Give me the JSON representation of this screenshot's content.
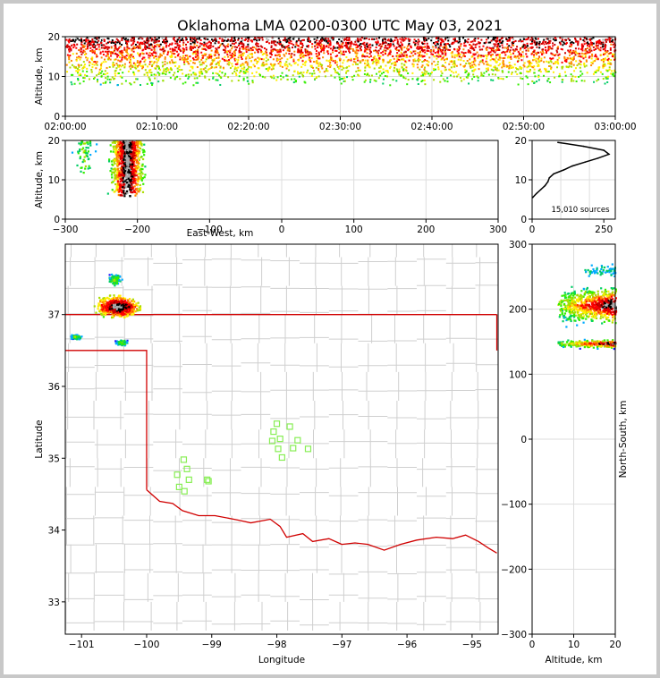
{
  "chart_data": {
    "type": "scatter",
    "title": "Oklahoma LMA 0200-0300 UTC May 03, 2021",
    "source_count_label": "15,010 sources",
    "colors": {
      "frame": "#000000",
      "grid": "#dddddd",
      "county": "#cfcfcf",
      "state_border": "#d00000",
      "station": "#88ee55",
      "histogram": "#000000",
      "background": "#ffffff"
    },
    "panels": [
      {
        "id": "time-height",
        "type": "scatter",
        "xlabel": "",
        "ylabel": "Altitude, km",
        "xlim_minutes": [
          0,
          60
        ],
        "ylim": [
          0,
          20
        ],
        "xticks": [
          "02:00:00",
          "02:10:00",
          "02:20:00",
          "02:30:00",
          "02:40:00",
          "02:50:00",
          "03:00:00"
        ],
        "yticks": [
          0,
          10,
          20
        ],
        "altitude_band_km": [
          8,
          20
        ]
      },
      {
        "id": "east-west-altitude",
        "type": "scatter",
        "xlabel": "East-West, km",
        "ylabel": "Altitude, km",
        "xlim": [
          -300,
          300
        ],
        "ylim": [
          0,
          20
        ],
        "xticks": [
          -300,
          -200,
          -100,
          0,
          100,
          200,
          300
        ],
        "yticks": [
          0,
          10,
          20
        ],
        "clusters": [
          {
            "x_center": -215,
            "x_halfwidth": 30,
            "alt_min": 6,
            "alt_max": 20
          },
          {
            "x_center": -275,
            "x_halfwidth": 20,
            "alt_min": 12,
            "alt_max": 20
          }
        ]
      },
      {
        "id": "altitude-histogram",
        "type": "line",
        "xlabel": "",
        "ylabel": "",
        "xlim": [
          0,
          290
        ],
        "ylim": [
          0,
          20
        ],
        "xticks": [
          0,
          250
        ],
        "yticks": [
          0,
          10,
          20
        ],
        "counts": [
          {
            "alt": 5.5,
            "n": 2
          },
          {
            "alt": 6.5,
            "n": 15
          },
          {
            "alt": 7.5,
            "n": 30
          },
          {
            "alt": 8.5,
            "n": 45
          },
          {
            "alt": 9.5,
            "n": 55
          },
          {
            "alt": 10.5,
            "n": 60
          },
          {
            "alt": 11.5,
            "n": 75
          },
          {
            "alt": 12.5,
            "n": 110
          },
          {
            "alt": 13.5,
            "n": 140
          },
          {
            "alt": 14.5,
            "n": 185
          },
          {
            "alt": 15.5,
            "n": 230
          },
          {
            "alt": 16.5,
            "n": 268
          },
          {
            "alt": 17.5,
            "n": 250
          },
          {
            "alt": 18.5,
            "n": 180
          },
          {
            "alt": 19.5,
            "n": 90
          }
        ]
      },
      {
        "id": "plan-view",
        "type": "scatter",
        "xlabel": "Longitude",
        "ylabel": "Latitude",
        "xlim": [
          -101.25,
          -94.6
        ],
        "ylim": [
          32.55,
          37.98
        ],
        "xticks": [
          -101,
          -100,
          -99,
          -98,
          -97,
          -96,
          -95
        ],
        "yticks": [
          33,
          34,
          35,
          36,
          37
        ],
        "clusters": [
          {
            "lon": -100.45,
            "lat": 37.12,
            "spread_lon": 0.4,
            "spread_lat": 0.18
          },
          {
            "lon": -100.5,
            "lat": 37.5,
            "spread_lon": 0.12,
            "spread_lat": 0.1
          },
          {
            "lon": -100.4,
            "lat": 36.62,
            "spread_lon": 0.12,
            "spread_lat": 0.05
          },
          {
            "lon": -101.1,
            "lat": 36.7,
            "spread_lon": 0.1,
            "spread_lat": 0.04
          }
        ],
        "stations": [
          {
            "lon": -99.43,
            "lat": 34.98
          },
          {
            "lon": -99.38,
            "lat": 34.85
          },
          {
            "lon": -99.53,
            "lat": 34.77
          },
          {
            "lon": -99.35,
            "lat": 34.7
          },
          {
            "lon": -99.07,
            "lat": 34.7
          },
          {
            "lon": -99.05,
            "lat": 34.68
          },
          {
            "lon": -99.5,
            "lat": 34.6
          },
          {
            "lon": -99.42,
            "lat": 34.54
          },
          {
            "lon": -98.0,
            "lat": 35.48
          },
          {
            "lon": -98.05,
            "lat": 35.37
          },
          {
            "lon": -98.07,
            "lat": 35.24
          },
          {
            "lon": -97.95,
            "lat": 35.27
          },
          {
            "lon": -97.8,
            "lat": 35.44
          },
          {
            "lon": -97.68,
            "lat": 35.25
          },
          {
            "lon": -97.98,
            "lat": 35.13
          },
          {
            "lon": -97.75,
            "lat": 35.14
          },
          {
            "lon": -97.92,
            "lat": 35.01
          },
          {
            "lon": -97.52,
            "lat": 35.13
          }
        ]
      },
      {
        "id": "altitude-north-south",
        "type": "scatter",
        "xlabel": "Altitude, km",
        "ylabel": "North-South, km",
        "xlim": [
          0,
          20
        ],
        "ylim": [
          -300,
          300
        ],
        "xticks": [
          0,
          10,
          20
        ],
        "yticks": [
          -300,
          -200,
          -100,
          0,
          100,
          200,
          300
        ],
        "clusters": [
          {
            "ns_center": 207,
            "ns_halfwidth": 35,
            "alt_min": 6,
            "alt_max": 20
          },
          {
            "ns_center": 148,
            "ns_halfwidth": 8,
            "alt_min": 6,
            "alt_max": 20
          },
          {
            "ns_center": 260,
            "ns_halfwidth": 15,
            "alt_min": 12,
            "alt_max": 20
          }
        ]
      }
    ]
  }
}
